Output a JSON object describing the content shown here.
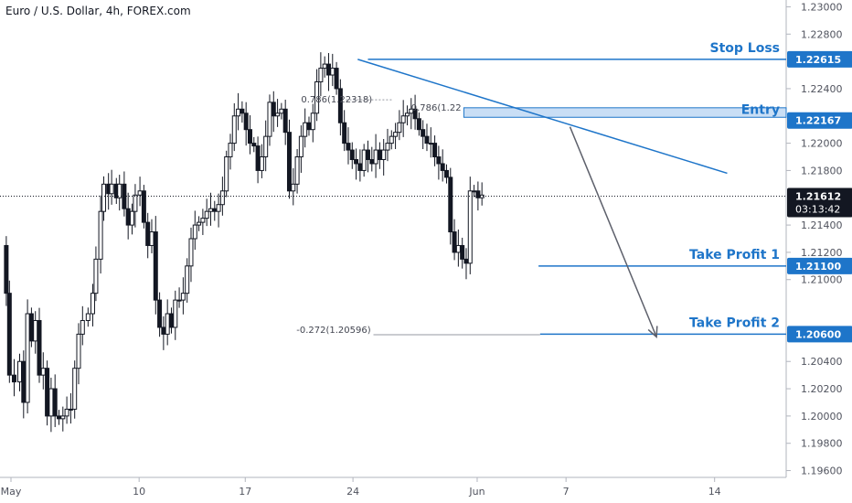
{
  "chart_title": "Euro / U.S. Dollar, 4h, FOREX.com",
  "chart_data": {
    "type": "candlestick",
    "symbol": "Euro / U.S. Dollar",
    "timeframe": "4h",
    "source": "FOREX.com",
    "ylim": [
      1.1955,
      1.2305
    ],
    "y_ticks": [
      "1.23000",
      "1.22800",
      "1.22400",
      "1.22000",
      "1.21800",
      "1.21400",
      "1.21200",
      "1.21000",
      "1.20400",
      "1.20200",
      "1.20000",
      "1.19800",
      "1.19600"
    ],
    "x_ticks": [
      "May",
      "10",
      "17",
      "24",
      "Jun",
      "7",
      "14"
    ],
    "close_path": [
      [
        0.0,
        1.2125
      ],
      [
        0.008,
        1.209
      ],
      [
        0.012,
        1.203
      ],
      [
        0.018,
        1.2025
      ],
      [
        0.025,
        1.204
      ],
      [
        0.03,
        1.201
      ],
      [
        0.035,
        1.2075
      ],
      [
        0.04,
        1.2055
      ],
      [
        0.045,
        1.207
      ],
      [
        0.05,
        1.203
      ],
      [
        0.055,
        1.2035
      ],
      [
        0.06,
        1.2
      ],
      [
        0.065,
        1.202
      ],
      [
        0.07,
        1.2
      ],
      [
        0.075,
        1.1998
      ],
      [
        0.08,
        1.2
      ],
      [
        0.085,
        1.2005
      ],
      [
        0.09,
        1.2005
      ],
      [
        0.095,
        1.2035
      ],
      [
        0.1,
        1.206
      ],
      [
        0.105,
        1.207
      ],
      [
        0.112,
        1.2075
      ],
      [
        0.118,
        1.209
      ],
      [
        0.122,
        1.2115
      ],
      [
        0.128,
        1.215
      ],
      [
        0.132,
        1.217
      ],
      [
        0.138,
        1.2163
      ],
      [
        0.142,
        1.217
      ],
      [
        0.148,
        1.216
      ],
      [
        0.152,
        1.217
      ],
      [
        0.158,
        1.2152
      ],
      [
        0.163,
        1.214
      ],
      [
        0.168,
        1.215
      ],
      [
        0.172,
        1.2162
      ],
      [
        0.178,
        1.2165
      ],
      [
        0.183,
        1.2142
      ],
      [
        0.188,
        1.2125
      ],
      [
        0.193,
        1.2135
      ],
      [
        0.198,
        1.2085
      ],
      [
        0.203,
        1.2065
      ],
      [
        0.208,
        1.206
      ],
      [
        0.213,
        1.2075
      ],
      [
        0.218,
        1.2065
      ],
      [
        0.223,
        1.2085
      ],
      [
        0.228,
        1.2085
      ],
      [
        0.233,
        1.209
      ],
      [
        0.238,
        1.211
      ],
      [
        0.243,
        1.213
      ],
      [
        0.248,
        1.214
      ],
      [
        0.253,
        1.2142
      ],
      [
        0.258,
        1.2145
      ],
      [
        0.263,
        1.215
      ],
      [
        0.268,
        1.2152
      ],
      [
        0.273,
        1.215
      ],
      [
        0.278,
        1.2155
      ],
      [
        0.283,
        1.2165
      ],
      [
        0.288,
        1.219
      ],
      [
        0.293,
        1.22
      ],
      [
        0.298,
        1.222
      ],
      [
        0.303,
        1.2225
      ],
      [
        0.308,
        1.2222
      ],
      [
        0.313,
        1.221
      ],
      [
        0.318,
        1.22
      ],
      [
        0.323,
        1.2198
      ],
      [
        0.328,
        1.218
      ],
      [
        0.333,
        1.219
      ],
      [
        0.338,
        1.2205
      ],
      [
        0.343,
        1.223
      ],
      [
        0.348,
        1.222
      ],
      [
        0.353,
        1.2222
      ],
      [
        0.358,
        1.2225
      ],
      [
        0.363,
        1.2208
      ],
      [
        0.368,
        1.2165
      ],
      [
        0.373,
        1.217
      ],
      [
        0.378,
        1.219
      ],
      [
        0.383,
        1.2205
      ],
      [
        0.388,
        1.2215
      ],
      [
        0.393,
        1.221
      ],
      [
        0.398,
        1.2222
      ],
      [
        0.403,
        1.2245
      ],
      [
        0.408,
        1.2255
      ],
      [
        0.413,
        1.2258
      ],
      [
        0.418,
        1.225
      ],
      [
        0.423,
        1.2255
      ],
      [
        0.428,
        1.224
      ],
      [
        0.433,
        1.2215
      ],
      [
        0.438,
        1.22
      ],
      [
        0.443,
        1.2195
      ],
      [
        0.448,
        1.2188
      ],
      [
        0.453,
        1.2185
      ],
      [
        0.458,
        1.218
      ],
      [
        0.463,
        1.2195
      ],
      [
        0.468,
        1.2188
      ],
      [
        0.473,
        1.2185
      ],
      [
        0.478,
        1.2195
      ],
      [
        0.483,
        1.2188
      ],
      [
        0.488,
        1.2195
      ],
      [
        0.493,
        1.22
      ],
      [
        0.498,
        1.2205
      ],
      [
        0.503,
        1.2208
      ],
      [
        0.508,
        1.2215
      ],
      [
        0.513,
        1.222
      ],
      [
        0.518,
        1.2222
      ],
      [
        0.523,
        1.2225
      ],
      [
        0.528,
        1.2218
      ],
      [
        0.533,
        1.221
      ],
      [
        0.538,
        1.2205
      ],
      [
        0.543,
        1.22
      ],
      [
        0.548,
        1.22
      ],
      [
        0.553,
        1.219
      ],
      [
        0.558,
        1.2185
      ],
      [
        0.563,
        1.218
      ],
      [
        0.568,
        1.2175
      ],
      [
        0.573,
        1.2135
      ],
      [
        0.578,
        1.212
      ],
      [
        0.583,
        1.2125
      ],
      [
        0.588,
        1.2115
      ],
      [
        0.593,
        1.2112
      ],
      [
        0.598,
        1.2165
      ],
      [
        0.603,
        1.2165
      ],
      [
        0.608,
        1.216
      ],
      [
        0.613,
        1.2162
      ]
    ],
    "trendline": [
      [
        0.455,
        1.22615
      ],
      [
        0.925,
        1.2178
      ]
    ],
    "projection_arrow": [
      [
        0.725,
        1.2212
      ],
      [
        0.835,
        1.2058
      ]
    ]
  },
  "levels": {
    "stop_loss": {
      "label": "Stop Loss",
      "price": "1.22615",
      "value": 1.22615
    },
    "entry": {
      "label": "Entry",
      "price": "1.22167",
      "value": 1.22167,
      "zone_top": 1.2226,
      "zone_bottom": 1.2219
    },
    "take_profit_1": {
      "label": "Take Profit 1",
      "price": "1.21100",
      "value": 1.211
    },
    "take_profit_2": {
      "label": "Take Profit 2",
      "price": "1.20600",
      "value": 1.206
    }
  },
  "current_price": {
    "price": "1.21612",
    "countdown": "03:13:42",
    "value": 1.21612
  },
  "fib_labels": {
    "fib1": {
      "text": "0.786(1.22318)",
      "value": 1.22318
    },
    "fib2": {
      "text": "0.786(1.22",
      "value": 1.2226
    },
    "fib3": {
      "text": "-0.272(1.20596)",
      "value": 1.20596
    }
  },
  "colors": {
    "level_line": "#1e75c9",
    "entry_zone": "#9cc2ec",
    "candle": "#131722",
    "arrow": "#5d606b",
    "tag_bg": "#1e75c9",
    "current_tag_bg": "#131722",
    "grid": "#e0e3eb"
  }
}
